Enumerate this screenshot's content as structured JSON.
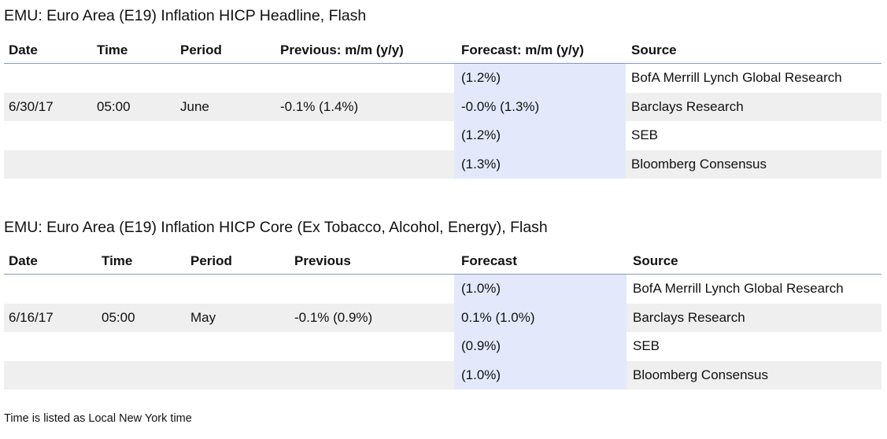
{
  "sections": [
    {
      "title": "EMU: Euro Area (E19) Inflation HICP Headline, Flash",
      "headers": {
        "date": "Date",
        "time": "Time",
        "period": "Period",
        "previous": "Previous: m/m (y/y)",
        "forecast": "Forecast: m/m (y/y)",
        "source": "Source"
      },
      "rows": [
        {
          "date": "",
          "time": "",
          "period": "",
          "previous": "",
          "forecast": "(1.2%)",
          "source": "BofA Merrill Lynch Global Research"
        },
        {
          "date": "6/30/17",
          "time": "05:00",
          "period": "June",
          "previous": "-0.1% (1.4%)",
          "forecast": "-0.0% (1.3%)",
          "source": "Barclays Research"
        },
        {
          "date": "",
          "time": "",
          "period": "",
          "previous": "",
          "forecast": "(1.2%)",
          "source": "SEB"
        },
        {
          "date": "",
          "time": "",
          "period": "",
          "previous": "",
          "forecast": "(1.3%)",
          "source": "Bloomberg Consensus"
        }
      ]
    },
    {
      "title": "EMU: Euro Area (E19) Inflation HICP Core (Ex Tobacco, Alcohol, Energy), Flash",
      "headers": {
        "date": "Date",
        "time": "Time",
        "period": "Period",
        "previous": "Previous",
        "forecast": "Forecast",
        "source": "Source"
      },
      "rows": [
        {
          "date": "",
          "time": "",
          "period": "",
          "previous": "",
          "forecast": "(1.0%)",
          "source": "BofA Merrill Lynch Global Research"
        },
        {
          "date": "6/16/17",
          "time": "05:00",
          "period": "May",
          "previous": "-0.1% (0.9%)",
          "forecast": "0.1% (1.0%)",
          "source": "Barclays Research"
        },
        {
          "date": "",
          "time": "",
          "period": "",
          "previous": "",
          "forecast": "(0.9%)",
          "source": "SEB"
        },
        {
          "date": "",
          "time": "",
          "period": "",
          "previous": "",
          "forecast": "(1.0%)",
          "source": "Bloomberg Consensus"
        }
      ]
    }
  ],
  "footnote": "Time is listed as Local New York time",
  "colors": {
    "forecast_highlight": "#e3e9fb",
    "alt_row": "#efefef",
    "header_rule": "#8796b8"
  }
}
